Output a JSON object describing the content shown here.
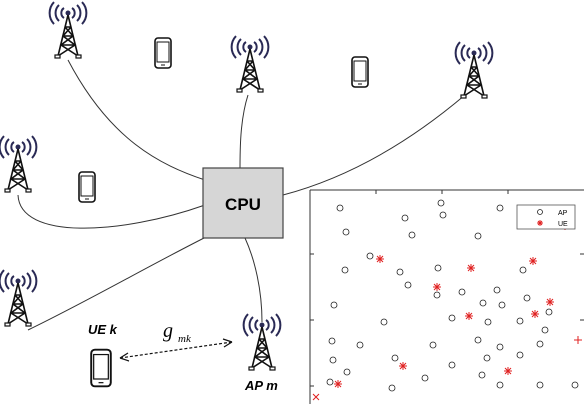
{
  "cpu": {
    "label": "CPU"
  },
  "ue": {
    "label": "UE k"
  },
  "channel": {
    "symbol": "g",
    "subscript": "mk"
  },
  "ap": {
    "label": "AP m"
  },
  "inset": {
    "legend": [
      "AP",
      "UE"
    ]
  }
}
